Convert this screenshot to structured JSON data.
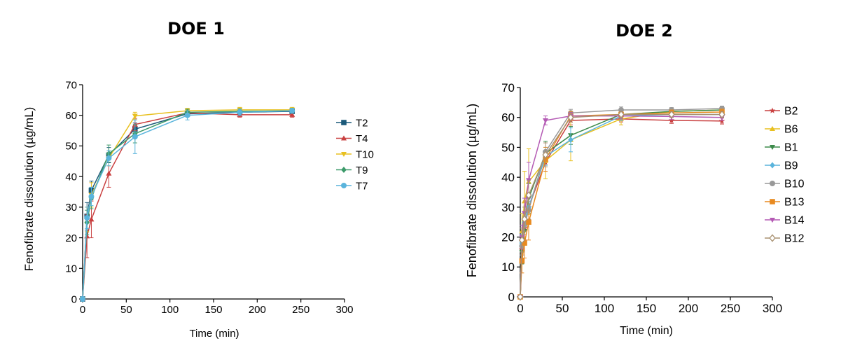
{
  "chart_data": [
    {
      "type": "line",
      "title": "DOE 1",
      "xlabel": "Time (min)",
      "ylabel": "Fenofibrate dissolution (µg/mL)",
      "xlim": [
        0,
        300
      ],
      "ylim": [
        0,
        70
      ],
      "xticks": [
        0,
        50,
        100,
        150,
        200,
        250,
        300
      ],
      "yticks": [
        0,
        10,
        20,
        30,
        40,
        50,
        60,
        70
      ],
      "xtick_labels": [
        "0",
        "50",
        "100",
        "150",
        "200",
        "250",
        "300"
      ],
      "ytick_labels": [
        "0",
        "10",
        "20",
        "30",
        "40",
        "50",
        "60",
        "70"
      ],
      "grid": false,
      "legend_position": "right",
      "x": [
        0,
        5,
        10,
        30,
        60,
        120,
        180,
        240
      ],
      "series": [
        {
          "name": "T2",
          "color": "#1b5a7a",
          "marker": "square",
          "values": [
            0,
            27,
            35.5,
            47,
            55.5,
            60.5,
            61,
            61.3
          ],
          "errors": [
            0,
            4.5,
            3,
            2.5,
            2,
            1,
            0.8,
            0.8
          ]
        },
        {
          "name": "T4",
          "color": "#c94040",
          "marker": "triangle-up",
          "values": [
            0,
            20.5,
            26,
            41,
            57,
            60.8,
            60.2,
            60.2
          ],
          "errors": [
            0,
            7,
            6,
            4.5,
            2,
            1,
            0.8,
            0.8
          ]
        },
        {
          "name": "T10",
          "color": "#e8c020",
          "marker": "triangle-down",
          "values": [
            0,
            26,
            34,
            46,
            59.8,
            61.5,
            61.8,
            61.8
          ],
          "errors": [
            0,
            4,
            4,
            2.5,
            1.2,
            0.8,
            0.8,
            0.8
          ]
        },
        {
          "name": "T9",
          "color": "#3c9a6a",
          "marker": "diamond",
          "values": [
            0,
            25,
            33,
            47.5,
            54,
            61,
            61.3,
            61.5
          ],
          "errors": [
            0,
            4,
            3.5,
            2.8,
            3,
            1,
            0.8,
            0.8
          ]
        },
        {
          "name": "T7",
          "color": "#5ab4dc",
          "marker": "circle",
          "values": [
            0,
            26.5,
            33.5,
            46,
            53,
            60,
            61,
            61.5
          ],
          "errors": [
            0,
            3.5,
            3,
            2.5,
            5.5,
            1.5,
            1,
            0.8
          ]
        }
      ]
    },
    {
      "type": "line",
      "title": "DOE 2",
      "xlabel": "Time (min)",
      "ylabel": "Fenofibrate dissolution (µg/mL)",
      "xlim": [
        0,
        300
      ],
      "ylim": [
        0,
        70
      ],
      "xticks": [
        0,
        50,
        100,
        150,
        200,
        250,
        300
      ],
      "yticks": [
        0,
        10,
        20,
        30,
        40,
        50,
        60,
        70
      ],
      "xtick_labels": [
        "0",
        "50",
        "100",
        "150",
        "200",
        "250",
        "300"
      ],
      "ytick_labels": [
        "0",
        "10",
        "20",
        "30",
        "40",
        "50",
        "60",
        "70"
      ],
      "grid": false,
      "legend_position": "right",
      "x": [
        0,
        2,
        5,
        10,
        30,
        60,
        120,
        180,
        240
      ],
      "series": [
        {
          "name": "B2",
          "color": "#c94040",
          "marker": "star",
          "values": [
            0,
            16,
            23,
            30,
            45,
            59,
            59.5,
            59,
            58.8
          ],
          "errors": [
            0,
            4,
            4,
            4,
            3,
            1.5,
            1,
            1,
            1
          ]
        },
        {
          "name": "B6",
          "color": "#e8c020",
          "marker": "triangle-up",
          "values": [
            0,
            22,
            32,
            38.5,
            45.5,
            52.5,
            59.5,
            62,
            62.5
          ],
          "errors": [
            0,
            6,
            10,
            11,
            6,
            7,
            2,
            1,
            1
          ]
        },
        {
          "name": "B1",
          "color": "#3c8a4a",
          "marker": "triangle-down",
          "values": [
            0,
            15,
            22,
            33,
            48,
            54,
            61,
            62,
            62.5
          ],
          "errors": [
            0,
            4,
            4,
            5,
            4,
            3,
            1.5,
            1,
            1
          ]
        },
        {
          "name": "B9",
          "color": "#5ab4dc",
          "marker": "diamond",
          "values": [
            0,
            18,
            25,
            30,
            47,
            52.5,
            60.5,
            61,
            61
          ],
          "errors": [
            0,
            3,
            3,
            4,
            3,
            4,
            1.5,
            1,
            1
          ]
        },
        {
          "name": "B10",
          "color": "#999999",
          "marker": "circle",
          "values": [
            0,
            17,
            24,
            29,
            48.5,
            61.5,
            62.5,
            62.5,
            63
          ],
          "errors": [
            0,
            3,
            3,
            3,
            3,
            1.2,
            1,
            0.8,
            0.8
          ]
        },
        {
          "name": "B13",
          "color": "#e88a20",
          "marker": "square",
          "values": [
            0,
            12,
            18,
            25,
            46,
            60.5,
            61,
            61.5,
            61.8
          ],
          "errors": [
            0,
            4,
            5,
            6,
            4,
            1.5,
            1,
            1,
            1
          ]
        },
        {
          "name": "B14",
          "color": "#b45ab4",
          "marker": "triangle-down",
          "values": [
            0,
            20,
            28,
            39,
            59,
            60.5,
            60.5,
            60.3,
            60
          ],
          "errors": [
            0,
            4,
            5,
            6,
            1.5,
            1.2,
            1,
            1,
            1
          ]
        },
        {
          "name": "B12",
          "color": "#a89070",
          "marker": "diamond-open",
          "values": [
            0,
            19,
            26,
            34,
            47.5,
            60,
            61,
            61,
            61
          ],
          "errors": [
            0,
            4,
            4,
            5,
            4,
            1.5,
            1,
            1,
            1
          ]
        }
      ]
    }
  ]
}
